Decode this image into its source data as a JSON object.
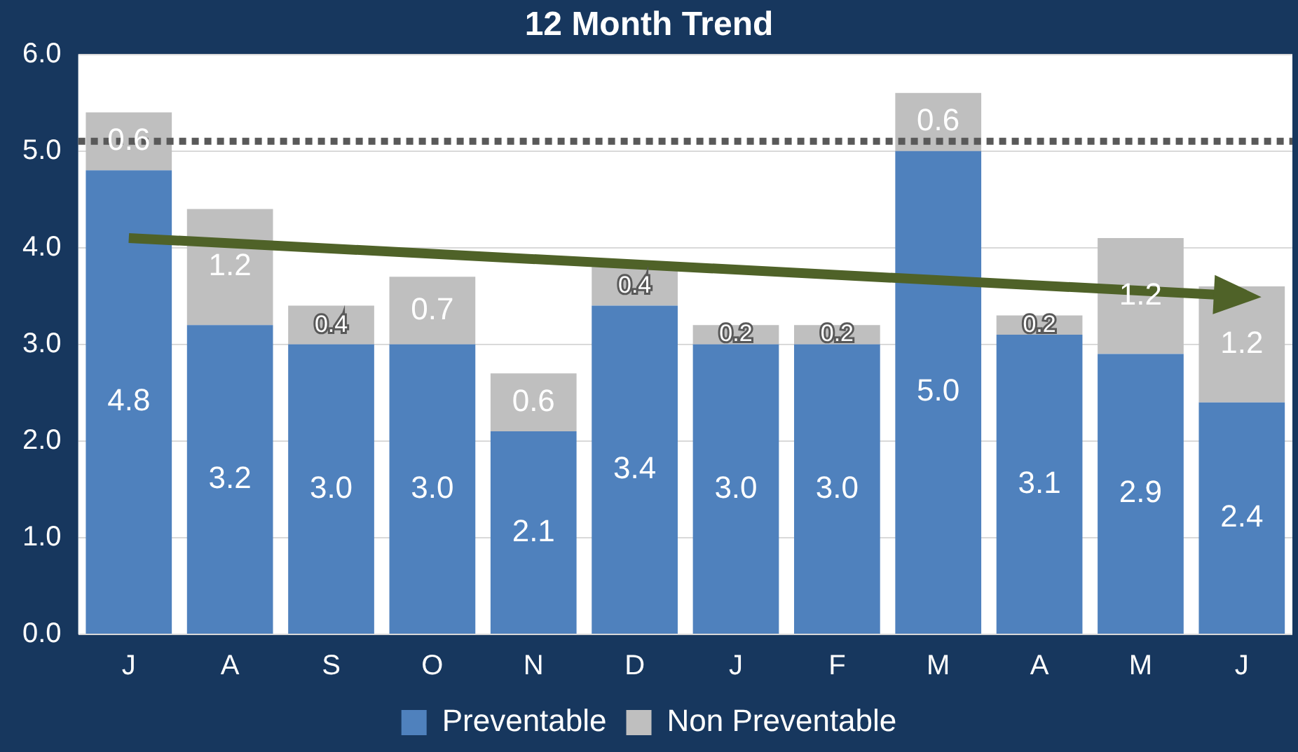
{
  "chart_data": {
    "type": "bar",
    "title": "12 Month Trend",
    "stacked": true,
    "categories": [
      "J",
      "A",
      "S",
      "O",
      "N",
      "D",
      "J",
      "F",
      "M",
      "A",
      "M",
      "J"
    ],
    "series": [
      {
        "name": "Preventable",
        "color": "#4f81bd",
        "values": [
          4.8,
          3.2,
          3.0,
          3.0,
          2.1,
          3.4,
          3.0,
          3.0,
          5.0,
          3.1,
          2.9,
          2.4
        ],
        "value_labels": [
          "4.8",
          "3.2",
          "3.0",
          "3.0",
          "2.1",
          "3.4",
          "3.0",
          "3.0",
          "5.0",
          "3.1",
          "2.9",
          "2.4"
        ]
      },
      {
        "name": "Non Preventable",
        "color": "#bfbfbf",
        "values": [
          0.6,
          1.2,
          0.4,
          0.7,
          0.6,
          0.4,
          0.2,
          0.2,
          0.6,
          0.2,
          1.2,
          1.2
        ],
        "value_labels": [
          "0.6",
          "1.2",
          "0.4",
          "0.7",
          "0.6",
          "0.4",
          "0.2",
          "0.2",
          "0.6",
          "0.2",
          "1.2",
          "1.2"
        ]
      },
      {
        "type": "line",
        "color": "#4f6228",
        "values": [
          4.1,
          null,
          null,
          null,
          null,
          null,
          null,
          null,
          null,
          null,
          null,
          3.5
        ]
      }
    ],
    "ylim": [
      0,
      6
    ],
    "yticks": [
      {
        "value": 0,
        "label": "0.0"
      },
      {
        "value": 1,
        "label": "1.0"
      },
      {
        "value": 2,
        "label": "2.0"
      },
      {
        "value": 3,
        "label": "3.0"
      },
      {
        "value": 4,
        "label": "4.0"
      },
      {
        "value": 5,
        "label": "5.0"
      },
      {
        "value": 6,
        "label": "6.0"
      }
    ],
    "ref_lines": [
      {
        "axis": "y",
        "value": 5.1,
        "color": "#595959",
        "line_style": "dotted"
      }
    ],
    "grid": "y",
    "legend": "bottom"
  }
}
